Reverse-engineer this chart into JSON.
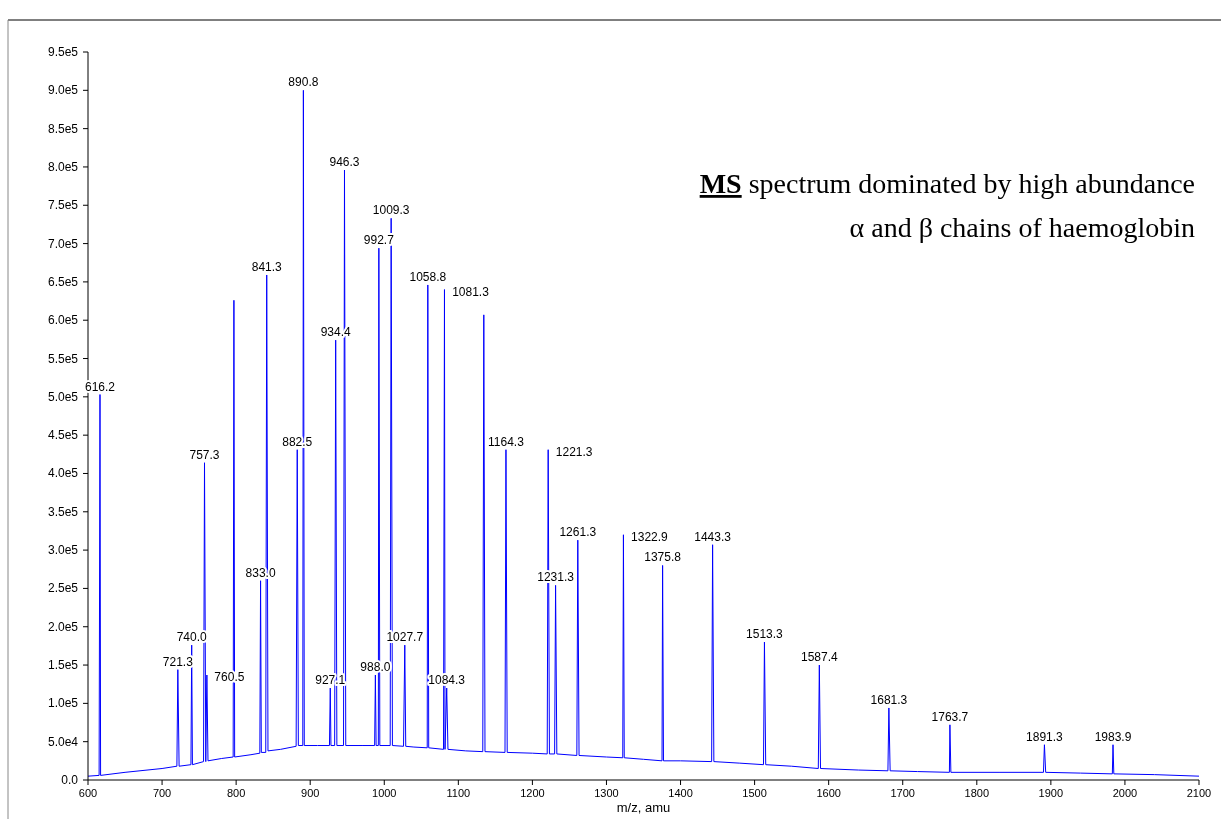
{
  "chart_data": {
    "type": "line",
    "xlabel": "m/z, amu",
    "xlim": [
      600,
      2100
    ],
    "xticks": [
      600,
      700,
      800,
      900,
      1000,
      1100,
      1200,
      1300,
      1400,
      1500,
      1600,
      1700,
      1800,
      1900,
      2000,
      2100
    ],
    "ylim": [
      0,
      950000
    ],
    "yticks": [
      {
        "value": 0,
        "label": "0.0"
      },
      {
        "value": 50000,
        "label": "5.0e4"
      },
      {
        "value": 100000,
        "label": "1.0e5"
      },
      {
        "value": 150000,
        "label": "1.5e5"
      },
      {
        "value": 200000,
        "label": "2.0e5"
      },
      {
        "value": 250000,
        "label": "2.5e5"
      },
      {
        "value": 300000,
        "label": "3.0e5"
      },
      {
        "value": 350000,
        "label": "3.5e5"
      },
      {
        "value": 400000,
        "label": "4.0e5"
      },
      {
        "value": 450000,
        "label": "4.5e5"
      },
      {
        "value": 500000,
        "label": "5.0e5"
      },
      {
        "value": 550000,
        "label": "5.5e5"
      },
      {
        "value": 600000,
        "label": "6.0e5"
      },
      {
        "value": 650000,
        "label": "6.5e5"
      },
      {
        "value": 700000,
        "label": "7.0e5"
      },
      {
        "value": 750000,
        "label": "7.5e5"
      },
      {
        "value": 800000,
        "label": "8.0e5"
      },
      {
        "value": 850000,
        "label": "8.5e5"
      },
      {
        "value": 900000,
        "label": "9.0e5"
      },
      {
        "value": 950000,
        "label": "9.5e5"
      }
    ],
    "grid": false,
    "series": [
      {
        "color": "#0000ff",
        "x": [
          600,
          615,
          616.2,
          617,
          650,
          700,
          720,
          721.3,
          723,
          739,
          740,
          741,
          756,
          757.3,
          759,
          760.5,
          762,
          780,
          796,
          797,
          798,
          820,
          832,
          833,
          834,
          840,
          841.3,
          843,
          860,
          881,
          882.5,
          884,
          890,
          890.8,
          892,
          910,
          926,
          927.1,
          928,
          933,
          934.4,
          936,
          945,
          946.3,
          948,
          970,
          987,
          988,
          989,
          992,
          992.7,
          994,
          1008,
          1009.3,
          1011,
          1026,
          1027.7,
          1029,
          1040,
          1058,
          1058.8,
          1060,
          1080,
          1081.3,
          1082,
          1084.3,
          1086,
          1110,
          1133,
          1134.4,
          1136,
          1163,
          1164.3,
          1166,
          1200,
          1220,
          1221.3,
          1223,
          1230,
          1231.3,
          1233,
          1260,
          1261.3,
          1263,
          1300,
          1322,
          1322.9,
          1324,
          1350,
          1375,
          1375.8,
          1377,
          1400,
          1442,
          1443.3,
          1445,
          1480,
          1512,
          1513.3,
          1515,
          1550,
          1586,
          1587.4,
          1589,
          1640,
          1680,
          1681.3,
          1683,
          1720,
          1763,
          1763.7,
          1765,
          1830,
          1890,
          1891.3,
          1893,
          1940,
          1983,
          1983.9,
          1985,
          2040,
          2100
        ],
        "values": [
          5000,
          6000,
          503000,
          6000,
          10000,
          15000,
          18000,
          144000,
          18000,
          20000,
          176000,
          20000,
          24000,
          414000,
          24000,
          137000,
          25000,
          28000,
          30000,
          626000,
          30000,
          33000,
          35000,
          260000,
          36000,
          36000,
          659000,
          38000,
          40000,
          44000,
          431000,
          45000,
          45000,
          900000,
          45000,
          45000,
          45000,
          120000,
          45000,
          45000,
          574000,
          45000,
          45000,
          796000,
          45000,
          45000,
          45000,
          137000,
          45000,
          45000,
          694000,
          45000,
          45000,
          733000,
          45000,
          44000,
          176000,
          44000,
          43000,
          42000,
          646000,
          42000,
          40000,
          640000,
          40000,
          120000,
          40000,
          38000,
          37000,
          607000,
          37000,
          36000,
          431000,
          36000,
          35000,
          34000,
          431000,
          34000,
          34000,
          254000,
          34000,
          32000,
          313000,
          32000,
          30000,
          29000,
          320000,
          29000,
          27000,
          25000,
          280000,
          25000,
          25000,
          24000,
          307000,
          24000,
          22000,
          20000,
          180000,
          20000,
          18000,
          15000,
          150000,
          15000,
          13000,
          12000,
          94000,
          12000,
          11000,
          10000,
          72000,
          10000,
          10000,
          10000,
          46000,
          10000,
          9000,
          8000,
          46000,
          8000,
          7000,
          5000
        ]
      }
    ],
    "annotations": [
      "MS spectrum dominated by high abundance",
      "α and β chains of haemoglobin",
      {
        "text": "616.2",
        "x": 616.2,
        "y": 503000
      },
      {
        "text": "721.3",
        "x": 721.3,
        "y": 144000
      },
      {
        "text": "740.0",
        "x": 740.0,
        "y": 176000
      },
      {
        "text": "757.3",
        "x": 757.3,
        "y": 414000
      },
      {
        "text": "760.5",
        "x": 760.5,
        "y": 137000
      },
      {
        "text": "833.0",
        "x": 833.0,
        "y": 260000
      },
      {
        "text": "841.3",
        "x": 841.3,
        "y": 659000
      },
      {
        "text": "882.5",
        "x": 882.5,
        "y": 431000
      },
      {
        "text": "890.8",
        "x": 890.8,
        "y": 900000
      },
      {
        "text": "927.1",
        "x": 927.1,
        "y": 120000
      },
      {
        "text": "934.4",
        "x": 934.4,
        "y": 574000
      },
      {
        "text": "946.3",
        "x": 946.3,
        "y": 796000
      },
      {
        "text": "988.0",
        "x": 988.0,
        "y": 137000
      },
      {
        "text": "992.7",
        "x": 992.7,
        "y": 694000
      },
      {
        "text": "1009.3",
        "x": 1009.3,
        "y": 733000
      },
      {
        "text": "1027.7",
        "x": 1027.7,
        "y": 176000
      },
      {
        "text": "1058.8",
        "x": 1058.8,
        "y": 646000
      },
      {
        "text": "1081.3",
        "x": 1081.3,
        "y": 640000
      },
      {
        "text": "1084.3",
        "x": 1084.3,
        "y": 120000
      },
      {
        "text": "1164.3",
        "x": 1164.3,
        "y": 431000
      },
      {
        "text": "1221.3",
        "x": 1221.3,
        "y": 431000
      },
      {
        "text": "1231.3",
        "x": 1231.3,
        "y": 254000
      },
      {
        "text": "1261.3",
        "x": 1261.3,
        "y": 313000
      },
      {
        "text": "1322.9",
        "x": 1322.9,
        "y": 320000
      },
      {
        "text": "1375.8",
        "x": 1375.8,
        "y": 280000
      },
      {
        "text": "1443.3",
        "x": 1443.3,
        "y": 307000
      },
      {
        "text": "1513.3",
        "x": 1513.3,
        "y": 180000
      },
      {
        "text": "1587.4",
        "x": 1587.4,
        "y": 150000
      },
      {
        "text": "1681.3",
        "x": 1681.3,
        "y": 94000
      },
      {
        "text": "1763.7",
        "x": 1763.7,
        "y": 72000
      },
      {
        "text": "1891.3",
        "x": 1891.3,
        "y": 46000
      },
      {
        "text": "1983.9",
        "x": 1983.9,
        "y": 46000
      }
    ]
  }
}
